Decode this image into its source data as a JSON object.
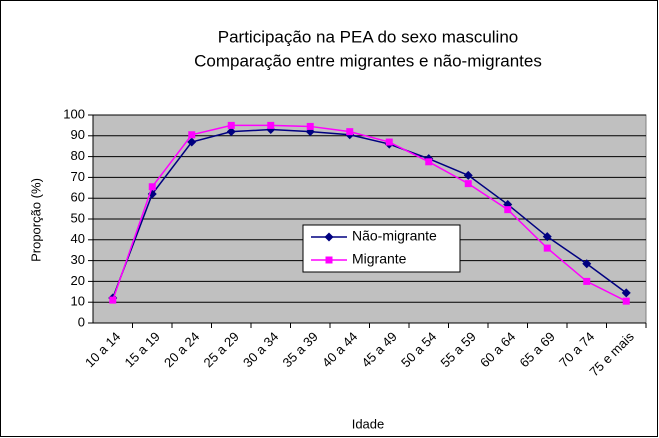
{
  "chart_data": {
    "type": "line",
    "title": "Participação na PEA do sexo masculino",
    "subtitle": "Comparação entre migrantes e não-migrantes",
    "x_label": "Idade",
    "y_label": "Proporção (%)",
    "categories": [
      "10 a 14",
      "15 a 19",
      "20 a 24",
      "25 a 29",
      "30 a 34",
      "35 a 39",
      "40 a 44",
      "45 a 49",
      "50 a 54",
      "55 a 59",
      "60 a 64",
      "65 a 69",
      "70 a 74",
      "75  e mais"
    ],
    "series": [
      {
        "name": "Não-migrante",
        "color": "#000080",
        "marker": "diamond",
        "values": [
          12,
          62,
          87,
          92,
          93,
          92,
          90.5,
          86,
          79,
          71,
          57,
          41.5,
          28.5,
          14.5
        ]
      },
      {
        "name": "Migrante",
        "color": "#ff00ff",
        "marker": "square",
        "values": [
          11,
          65.5,
          90.5,
          95,
          95,
          94.5,
          92,
          87,
          77.5,
          67,
          54.5,
          36,
          20,
          10.5
        ]
      }
    ],
    "ylim": [
      0,
      100
    ],
    "yticks": [
      0,
      10,
      20,
      30,
      40,
      50,
      60,
      70,
      80,
      90,
      100
    ],
    "grid": true
  }
}
